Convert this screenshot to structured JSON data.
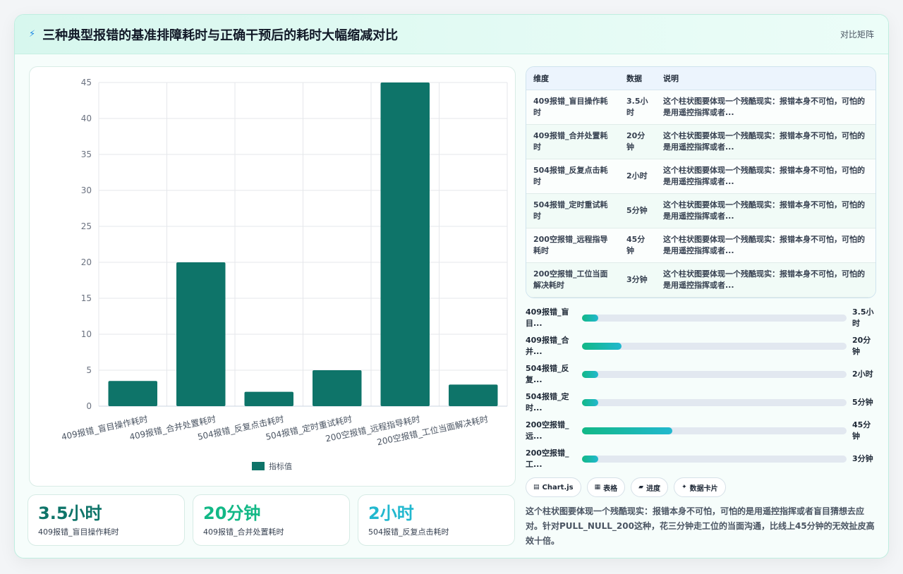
{
  "header": {
    "icon": "lightning-icon",
    "title": "三种典型报错的基准排障耗时与正确干预后的耗时大幅缩减对比",
    "tag": "对比矩阵"
  },
  "colors": {
    "bar": "#0e7469",
    "stat1": "#0e7469",
    "stat2": "#12b886",
    "stat3": "#22b8cf"
  },
  "chart_data": {
    "type": "bar",
    "categories": [
      "409报错_盲目操作耗时",
      "409报错_合并处置耗时",
      "504报错_反复点击耗时",
      "504报错_定时重试耗时",
      "200空报错_远程指导耗时",
      "200空报错_工位当面解决耗时"
    ],
    "series": [
      {
        "name": "指标值",
        "values": [
          3.5,
          20,
          2,
          5,
          45,
          3
        ]
      }
    ],
    "ylim": [
      0,
      45
    ],
    "yticks": [
      0,
      5,
      10,
      15,
      20,
      25,
      30,
      35,
      40,
      45
    ],
    "grid": true,
    "legend": "bottom"
  },
  "stats": [
    {
      "value": "3.5小时",
      "label": "409报错_盲目操作耗时"
    },
    {
      "value": "20分钟",
      "label": "409报错_合并处置耗时"
    },
    {
      "value": "2小时",
      "label": "504报错_反复点击耗时"
    }
  ],
  "table": {
    "headers": [
      "维度",
      "数据",
      "说明"
    ],
    "rows": [
      {
        "dim": "409报错_盲目操作耗时",
        "data": "3.5小时",
        "desc": "这个柱状图要体现一个残酷现实：报错本身不可怕，可怕的是用遥控指挥或者..."
      },
      {
        "dim": "409报错_合并处置耗时",
        "data": "20分钟",
        "desc": "这个柱状图要体现一个残酷现实：报错本身不可怕，可怕的是用遥控指挥或者..."
      },
      {
        "dim": "504报错_反复点击耗时",
        "data": "2小时",
        "desc": "这个柱状图要体现一个残酷现实：报错本身不可怕，可怕的是用遥控指挥或者..."
      },
      {
        "dim": "504报错_定时重试耗时",
        "data": "5分钟",
        "desc": "这个柱状图要体现一个残酷现实：报错本身不可怕，可怕的是用遥控指挥或者..."
      },
      {
        "dim": "200空报错_远程指导耗时",
        "data": "45分钟",
        "desc": "这个柱状图要体现一个残酷现实：报错本身不可怕，可怕的是用遥控指挥或者..."
      },
      {
        "dim": "200空报错_工位当面解决耗时",
        "data": "3分钟",
        "desc": "这个柱状图要体现一个残酷现实：报错本身不可怕，可怕的是用遥控指挥或者..."
      }
    ]
  },
  "progress": [
    {
      "label": "409报错_盲目...",
      "value": "3.5小时",
      "fraction": 0.06
    },
    {
      "label": "409报错_合并...",
      "value": "20分钟",
      "fraction": 0.15
    },
    {
      "label": "504报错_反复...",
      "value": "2小时",
      "fraction": 0.06
    },
    {
      "label": "504报错_定时...",
      "value": "5分钟",
      "fraction": 0.06
    },
    {
      "label": "200空报错_远...",
      "value": "45分钟",
      "fraction": 0.34
    },
    {
      "label": "200空报错_工...",
      "value": "3分钟",
      "fraction": 0.06
    }
  ],
  "chips": [
    {
      "icon": "chart-icon",
      "glyph": "▤",
      "label": "Chart.js"
    },
    {
      "icon": "table-icon",
      "glyph": "▦",
      "label": "表格"
    },
    {
      "icon": "progress-icon",
      "glyph": "▰",
      "label": "进度"
    },
    {
      "icon": "sparkle-icon",
      "glyph": "✦",
      "label": "数据卡片"
    }
  ],
  "note": "这个柱状图要体现一个残酷现实：报错本身不可怕，可怕的是用遥控指挥或者盲目猜想去应对。针对PULL_NULL_200这种，花三分钟走工位的当面沟通，比线上45分钟的无效扯皮高效十倍。"
}
